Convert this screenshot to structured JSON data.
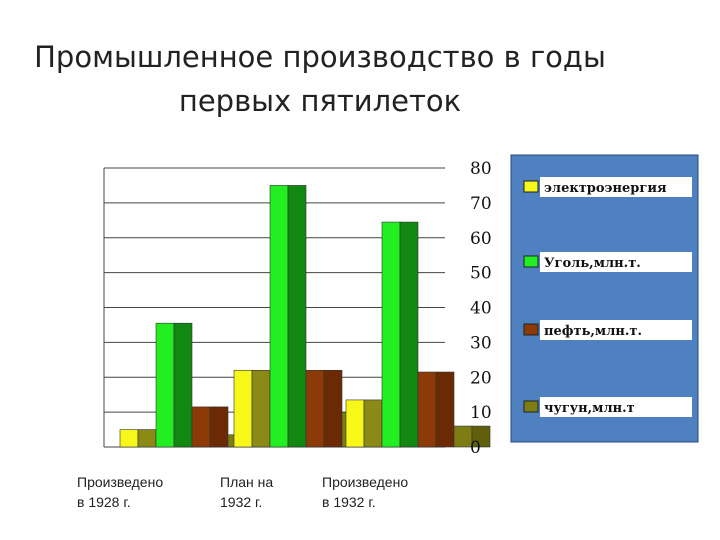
{
  "title": {
    "line1": "Промышленное производство в годы",
    "line2": "первых пятилеток"
  },
  "chart_data": {
    "type": "bar",
    "categories": [
      [
        "Произведено",
        "в 1928 г."
      ],
      [
        "План на",
        "1932 г."
      ],
      [
        "Произведено",
        "в 1932 г."
      ]
    ],
    "series": [
      {
        "name": "электроэнергия",
        "values": [
          5,
          22,
          13.5
        ],
        "color": "#f7f71a",
        "shade": "#8a8a14"
      },
      {
        "name": "Уголь,млн.т.",
        "values": [
          35.5,
          75,
          64.5
        ],
        "color": "#22ee22",
        "shade": "#118811"
      },
      {
        "name": "пефть,млн.т.",
        "values": [
          11.5,
          22,
          21.5
        ],
        "color": "#8b3a08",
        "shade": "#6b2a04"
      },
      {
        "name": "чугун,млн.т",
        "values": [
          3.5,
          10,
          6
        ],
        "color": "#7d7d14",
        "shade": "#5f5f0c"
      }
    ],
    "ylim": [
      0,
      80
    ],
    "yticks": [
      "0",
      "10",
      "20",
      "30",
      "40",
      "50",
      "60",
      "70",
      "80"
    ],
    "grid": true,
    "legend_position": "right",
    "legend_background": "#4f80c0"
  }
}
